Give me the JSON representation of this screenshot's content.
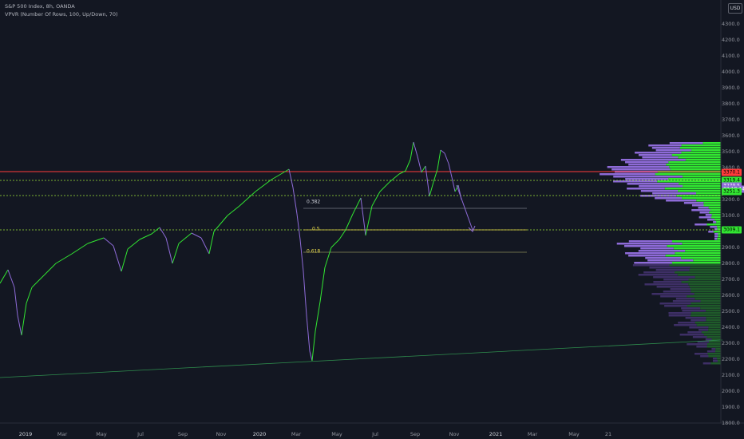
{
  "legend": {
    "symbol_line": "S&P 500 Index, 8h, OANDA",
    "indicator_line": "VPVR (Number Of Rows, 100, Up/Down, 70)"
  },
  "currency": "USD",
  "y_axis": {
    "ticks": [
      "4300.0",
      "4200.0",
      "4100.0",
      "4000.0",
      "3900.0",
      "3800.0",
      "3700.0",
      "3600.0",
      "3500.0",
      "3400.0",
      "3300.0",
      "3200.0",
      "3100.0",
      "3000.0",
      "2900.0",
      "2800.0",
      "2700.0",
      "2600.0",
      "2500.0",
      "2400.0",
      "2300.0",
      "2200.0",
      "2100.0",
      "2000.0",
      "1900.0",
      "1800.0"
    ],
    "price_labels": [
      {
        "text": "3370.1",
        "color": "#ff3b3b",
        "value": 3370
      },
      {
        "text": "3319.4",
        "color": "#32e632",
        "value": 3319
      },
      {
        "text": "3279.5",
        "color": "#8e6bd8",
        "value": 3285
      },
      {
        "text": "03:18:14",
        "color": "#8e6bd8",
        "value": 3266
      },
      {
        "text": "3251.3",
        "color": "#32e632",
        "value": 3248
      },
      {
        "text": "3009.1",
        "color": "#32e632",
        "value": 3009
      }
    ]
  },
  "x_axis": {
    "ticks": [
      {
        "label": "2019",
        "bold": true
      },
      {
        "label": "Mar",
        "bold": false
      },
      {
        "label": "May",
        "bold": false
      },
      {
        "label": "Jul",
        "bold": false
      },
      {
        "label": "Sep",
        "bold": false
      },
      {
        "label": "Nov",
        "bold": false
      },
      {
        "label": "2020",
        "bold": true
      },
      {
        "label": "Mar",
        "bold": false
      },
      {
        "label": "May",
        "bold": false
      },
      {
        "label": "Jul",
        "bold": false
      },
      {
        "label": "Sep",
        "bold": false
      },
      {
        "label": "Nov",
        "bold": false
      },
      {
        "label": "2021",
        "bold": true
      },
      {
        "label": "Mar",
        "bold": false
      },
      {
        "label": "May",
        "bold": false
      },
      {
        "label": "21",
        "bold": false
      }
    ]
  },
  "fib_levels": [
    {
      "label": "0.382",
      "color": "#d1d4dc",
      "value": 3180
    },
    {
      "label": "0.5",
      "color": "#e6d84a",
      "value": 3009
    },
    {
      "label": "0.618",
      "color": "#e6d84a",
      "value": 2870
    }
  ],
  "colors": {
    "up": "#32e632",
    "down": "#8e6bd8",
    "resistance": "#ff3b3b",
    "support_dotted": "#9ee63a"
  }
}
